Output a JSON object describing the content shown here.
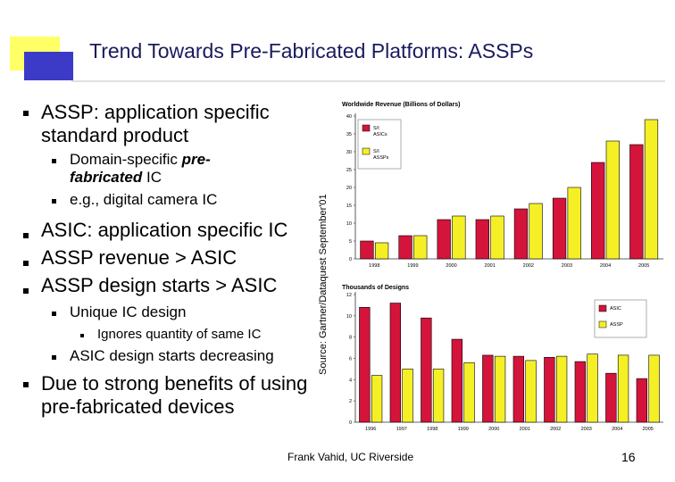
{
  "slide": {
    "title": "Trend Towards Pre-Fabricated Platforms: ASSPs",
    "footer": "Frank Vahid, UC Riverside",
    "page_number": "16",
    "source_note": "Source: Gartner/Dataquest September'01"
  },
  "bullets": {
    "assp_def": "ASSP: application specific standard product",
    "domain_specific": "Domain-specific",
    "prefab": "pre-fabricated",
    "ic": "IC",
    "camera": "e.g., digital camera IC",
    "asic_def": "ASIC: application specific IC",
    "revenue": "ASSP revenue > ASIC",
    "design_starts": "ASSP design starts > ASIC",
    "unique": "Unique IC design",
    "ignores": "Ignores quantity of same IC",
    "decreasing": "ASIC design starts decreasing",
    "benefits": "Due to strong benefits of using pre-fabricated devices"
  },
  "colors": {
    "title": "#1a1a5e",
    "asic": "#d4143a",
    "assp": "#f5f026",
    "deco_yellow": "#ffff66",
    "deco_blue": "#3b3bc8"
  },
  "chart_data": [
    {
      "type": "bar",
      "title": "Worldwide Revenue (Billions of Dollars)",
      "categories": [
        "1998",
        "1999",
        "2000",
        "2001",
        "2002",
        "2003",
        "2004",
        "2005"
      ],
      "ylim": [
        0,
        40
      ],
      "yticks": [
        "0",
        "5",
        "10",
        "15",
        "20",
        "25",
        "30",
        "35",
        "40"
      ],
      "legend_position": "top-left",
      "series": [
        {
          "name": "S/I ASICs",
          "color": "#d4143a",
          "values": [
            5,
            6.5,
            11,
            11,
            14,
            17,
            27,
            32
          ]
        },
        {
          "name": "S/I ASSPs",
          "color": "#f5f026",
          "values": [
            4.5,
            6.5,
            12,
            12,
            15.5,
            20,
            33,
            39
          ]
        }
      ]
    },
    {
      "type": "bar",
      "title": "Thousands of Designs",
      "categories": [
        "1996",
        "1997",
        "1998",
        "1999",
        "2000",
        "2001",
        "2002",
        "2003",
        "2004",
        "2005"
      ],
      "ylim": [
        0,
        12
      ],
      "yticks": [
        "0",
        "2",
        "4",
        "6",
        "8",
        "10",
        "12"
      ],
      "legend_position": "top-right",
      "series": [
        {
          "name": "ASIC",
          "color": "#d4143a",
          "values": [
            10.8,
            11.2,
            9.8,
            7.8,
            6.3,
            6.2,
            6.1,
            5.7,
            4.6,
            4.1
          ]
        },
        {
          "name": "ASSP",
          "color": "#f5f026",
          "values": [
            4.4,
            5,
            5,
            5.6,
            6.2,
            5.8,
            6.2,
            6.4,
            6.3,
            6.3
          ]
        }
      ]
    }
  ]
}
